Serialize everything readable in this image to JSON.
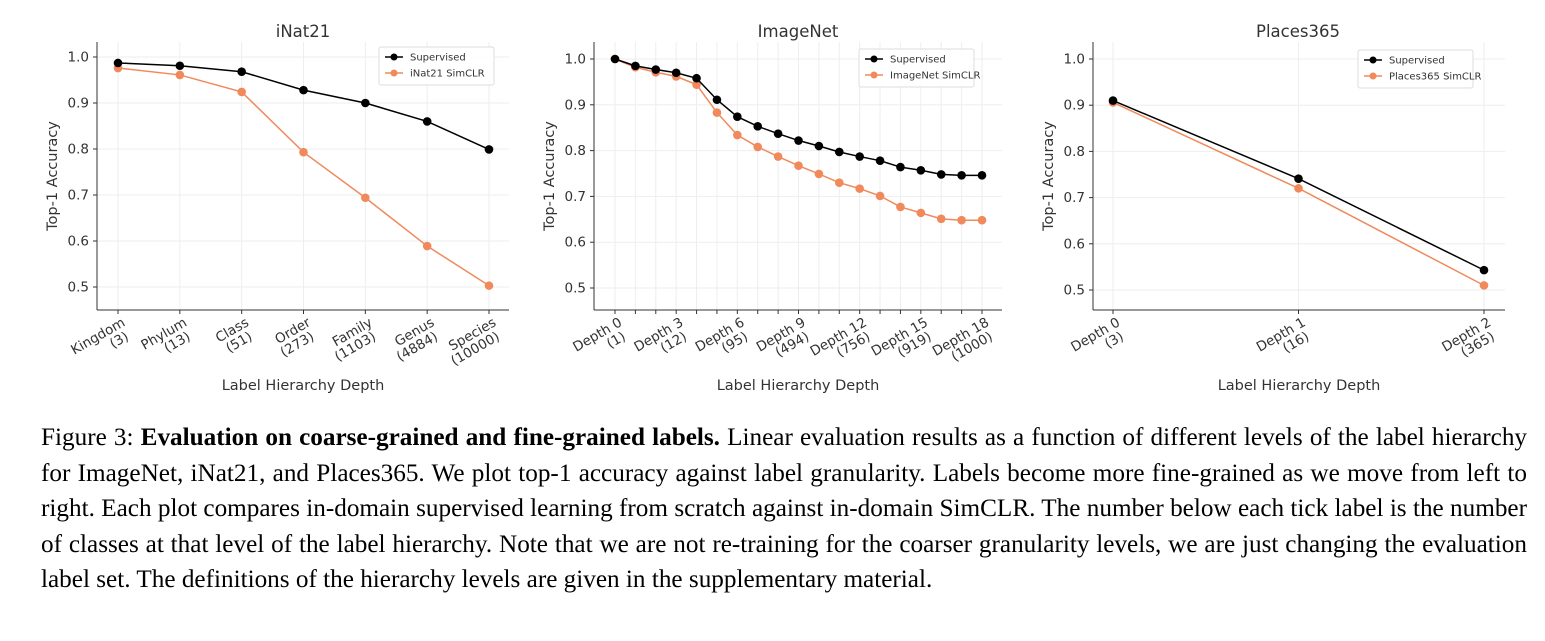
{
  "chart_data": [
    {
      "type": "line",
      "title": "iNat21",
      "xlabel": "Label Hierarchy Depth",
      "ylabel": "Top-1 Accuracy",
      "ylim": [
        0.45,
        1.01
      ],
      "yticks": [
        "0.5",
        "0.6",
        "0.7",
        "0.8",
        "0.9",
        "1.0"
      ],
      "categories": [
        {
          "name": "Kingdom",
          "count": "(3)"
        },
        {
          "name": "Phylum",
          "count": "(13)"
        },
        {
          "name": "Class",
          "count": "(51)"
        },
        {
          "name": "Order",
          "count": "(273)"
        },
        {
          "name": "Family",
          "count": "(1103)"
        },
        {
          "name": "Genus",
          "count": "(4884)"
        },
        {
          "name": "Species",
          "count": "(10000)"
        }
      ],
      "legend_position": "top-right",
      "grid": true,
      "series": [
        {
          "name": "Supervised",
          "color": "#000000",
          "values": [
            0.987,
            0.981,
            0.968,
            0.928,
            0.9,
            0.86,
            0.799
          ]
        },
        {
          "name": "iNat21 SimCLR",
          "color": "#f08a5d",
          "values": [
            0.976,
            0.961,
            0.924,
            0.793,
            0.694,
            0.589,
            0.503
          ]
        }
      ]
    },
    {
      "type": "line",
      "title": "ImageNet",
      "xlabel": "Label Hierarchy Depth",
      "ylabel": "Top-1 Accuracy",
      "ylim": [
        0.45,
        1.01
      ],
      "yticks": [
        "0.5",
        "0.6",
        "0.7",
        "0.8",
        "0.9",
        "1.0"
      ],
      "categories": [
        {
          "name": "Depth 0",
          "count": "(1)"
        },
        {
          "name": "",
          "count": ""
        },
        {
          "name": "",
          "count": ""
        },
        {
          "name": "Depth 3",
          "count": "(12)"
        },
        {
          "name": "",
          "count": ""
        },
        {
          "name": "",
          "count": ""
        },
        {
          "name": "Depth 6",
          "count": "(95)"
        },
        {
          "name": "",
          "count": ""
        },
        {
          "name": "",
          "count": ""
        },
        {
          "name": "Depth 9",
          "count": "(494)"
        },
        {
          "name": "",
          "count": ""
        },
        {
          "name": "",
          "count": ""
        },
        {
          "name": "Depth 12",
          "count": "(756)"
        },
        {
          "name": "",
          "count": ""
        },
        {
          "name": "",
          "count": ""
        },
        {
          "name": "Depth 15",
          "count": "(919)"
        },
        {
          "name": "",
          "count": ""
        },
        {
          "name": "",
          "count": ""
        },
        {
          "name": "Depth 18",
          "count": "(1000)"
        }
      ],
      "legend_position": "top-right",
      "grid": true,
      "series": [
        {
          "name": "Supervised",
          "color": "#000000",
          "values": [
            1.0,
            0.985,
            0.977,
            0.97,
            0.958,
            0.911,
            0.874,
            0.853,
            0.837,
            0.822,
            0.81,
            0.797,
            0.787,
            0.778,
            0.764,
            0.757,
            0.748,
            0.746,
            0.746
          ]
        },
        {
          "name": "ImageNet SimCLR",
          "color": "#f08a5d",
          "values": [
            1.0,
            0.982,
            0.971,
            0.962,
            0.944,
            0.883,
            0.834,
            0.808,
            0.787,
            0.767,
            0.749,
            0.73,
            0.717,
            0.701,
            0.677,
            0.664,
            0.651,
            0.648,
            0.648
          ]
        }
      ]
    },
    {
      "type": "line",
      "title": "Places365",
      "xlabel": "Label Hierarchy Depth",
      "ylabel": "Top-1 Accuracy",
      "ylim": [
        0.47,
        1.01
      ],
      "yticks": [
        "0.5",
        "0.6",
        "0.7",
        "0.8",
        "0.9",
        "1.0"
      ],
      "categories": [
        {
          "name": "Depth 0",
          "count": "(3)"
        },
        {
          "name": "Depth 1",
          "count": "(16)"
        },
        {
          "name": "Depth 2",
          "count": "(365)"
        }
      ],
      "legend_position": "top-right",
      "grid": true,
      "series": [
        {
          "name": "Supervised",
          "color": "#000000",
          "values": [
            0.91,
            0.741,
            0.543
          ]
        },
        {
          "name": "Places365 SimCLR",
          "color": "#f08a5d",
          "values": [
            0.906,
            0.72,
            0.51
          ]
        }
      ]
    }
  ],
  "caption": {
    "label": "Figure 3:",
    "bold_title": "Evaluation on coarse-grained and fine-grained labels.",
    "text": "Linear evaluation results as a function of different levels of the label hierarchy for ImageNet, iNat21, and Places365. We plot top-1 accuracy against label granularity. Labels become more fine-grained as we move from left to right. Each plot compares in-domain supervised learning from scratch against in-domain SimCLR. The number below each tick label is the number of classes at that level of the label hierarchy. Note that we are not re-training for the coarser granularity levels, we are just changing the evaluation label set. The definitions of the hierarchy levels are given in the supplementary material."
  }
}
